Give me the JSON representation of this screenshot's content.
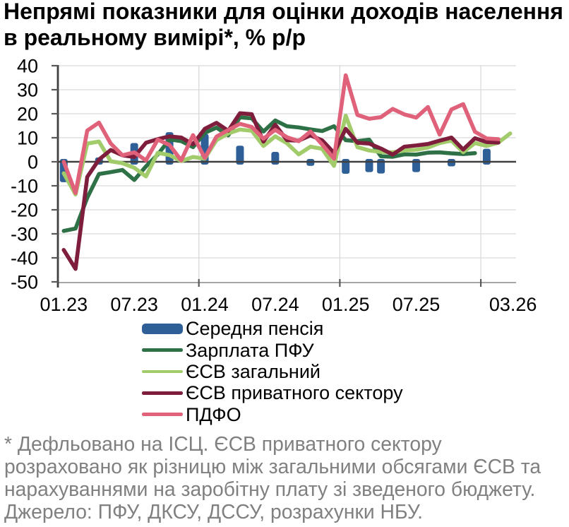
{
  "title": {
    "line1": "Непрямі показники для оцінки доходів населення",
    "line2": "в реальному вимірі*, % р/р"
  },
  "chart_data": {
    "type": "combo",
    "x_categories": [
      "01.23",
      "02.23",
      "03.23",
      "04.23",
      "05.23",
      "06.23",
      "07.23",
      "08.23",
      "09.23",
      "10.23",
      "11.23",
      "12.23",
      "01.24",
      "02.24",
      "03.24",
      "04.24",
      "05.24",
      "06.24",
      "07.24",
      "08.24",
      "09.24",
      "10.24",
      "11.24",
      "12.24",
      "01.25",
      "02.25",
      "03.25",
      "04.25",
      "05.25",
      "06.25",
      "07.25",
      "08.25",
      "09.25",
      "10.25",
      "11.25",
      "12.25",
      "01.26",
      "02.26",
      "03.26"
    ],
    "x_tick_indices": [
      0,
      6,
      12,
      18,
      24,
      30,
      38
    ],
    "x_tick_labels": [
      "01.23",
      "07.23",
      "01.24",
      "07.24",
      "01.25",
      "07.25",
      "03.26"
    ],
    "year_gridline_indices": [
      12,
      24,
      36
    ],
    "ylabel": "",
    "xlabel": "",
    "ylim": [
      -50,
      40
    ],
    "ytick_step": 10,
    "ytick_labels": [
      "40",
      "30",
      "20",
      "10",
      "0",
      "-10",
      "-20",
      "-30",
      "-40",
      "-50"
    ],
    "grid": true,
    "legend_position": "bottom",
    "series": [
      {
        "name": "Середня пенсія",
        "type": "bar",
        "color": "#2E5F97",
        "values": [
          -8.5,
          null,
          null,
          1.8,
          null,
          null,
          7.8,
          null,
          null,
          12.3,
          null,
          null,
          11.6,
          null,
          null,
          6.7,
          null,
          null,
          4.1,
          null,
          null,
          -1.7,
          null,
          null,
          -5.0,
          null,
          -4.3,
          -4.9,
          null,
          null,
          -4.3,
          null,
          null,
          -1.9,
          null,
          null,
          5.4,
          null,
          null
        ]
      },
      {
        "name": "Зарплата ПФУ",
        "type": "line",
        "color": "#2F7146",
        "values": [
          -28.8,
          -27.8,
          -15.0,
          -5.1,
          -4.3,
          -3.4,
          -7.6,
          -1.9,
          3.0,
          9.3,
          8.6,
          6.1,
          12.0,
          14.2,
          11.0,
          18.5,
          18.1,
          12.6,
          17.2,
          14.8,
          14.3,
          13.5,
          12.8,
          14.8,
          9.0,
          8.6,
          9.2,
          2.3,
          2.1,
          3.1,
          3.0,
          3.8,
          3.9,
          3.5,
          3.2,
          3.6,
          null,
          null,
          null
        ]
      },
      {
        "name": "ЄСВ загальний",
        "type": "line",
        "color": "#A2CB6B",
        "values": [
          -4.8,
          -13.6,
          7.6,
          8.4,
          0.2,
          -0.6,
          -2.5,
          -6.1,
          3.7,
          2.8,
          0.3,
          2.0,
          1.3,
          9.0,
          11.8,
          13.4,
          12.9,
          6.6,
          10.6,
          7.7,
          3.1,
          6.3,
          5.4,
          -1.7,
          19.2,
          6.1,
          4.7,
          4.1,
          3.9,
          4.7,
          5.0,
          5.9,
          7.8,
          8.8,
          4.0,
          7.8,
          6.6,
          8.0,
          11.8
        ]
      },
      {
        "name": "ЄСВ приватного сектору",
        "type": "line",
        "color": "#7E1E3C",
        "values": [
          -36.7,
          -44.6,
          -6.3,
          0.9,
          4.9,
          2.7,
          2.0,
          7.9,
          9.4,
          10.6,
          10.1,
          7.3,
          13.7,
          16.2,
          12.9,
          20.2,
          19.8,
          8.4,
          15.4,
          9.0,
          8.8,
          11.0,
          8.9,
          3.7,
          13.7,
          7.9,
          7.6,
          5.5,
          3.0,
          6.3,
          6.8,
          7.4,
          8.8,
          10.1,
          5.1,
          9.8,
          8.2,
          8.0,
          null
        ]
      },
      {
        "name": "ПДФО",
        "type": "line",
        "color": "#E0617A",
        "values": [
          0.0,
          -13.0,
          13.0,
          16.3,
          7.6,
          2.7,
          3.9,
          0.6,
          9.2,
          7.0,
          0.6,
          11.1,
          1.6,
          10.5,
          13.2,
          15.8,
          14.5,
          9.6,
          13.3,
          10.2,
          8.6,
          12.6,
          7.2,
          1.3,
          36.0,
          19.5,
          17.9,
          18.6,
          22.0,
          19.7,
          18.4,
          22.8,
          11.3,
          21.8,
          24.0,
          12.5,
          9.7,
          9.4,
          null
        ]
      }
    ],
    "colors": {
      "grid": "#d9d9d9",
      "zero_line": "#404040",
      "axis": "#404040",
      "bottom_axis": "#a6a6a6",
      "tick": "#595959",
      "label": "#000000"
    }
  },
  "legend": {
    "items": [
      "Середня пенсія",
      "Зарплата ПФУ",
      "ЄСВ загальний",
      "ЄСВ приватного сектору",
      "ПДФО"
    ]
  },
  "footnote": {
    "lines": [
      "* Дефльовано на ІСЦ. ЄСВ приватного сектору",
      "розраховано як різницю між загальними обсягами ЄСВ та",
      "нарахуваннями на заробітну плату зі зведеного бюджету.",
      "Джерело: ПФУ, ДКСУ, ДССУ, розрахунки НБУ."
    ]
  }
}
